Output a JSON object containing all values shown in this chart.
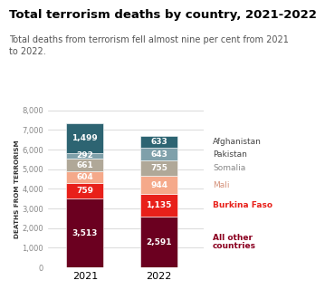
{
  "title": "Total terrorism deaths by country, 2021-2022",
  "subtitle": "Total deaths from terrorism fell almost nine per cent from 2021\nto 2022.",
  "years": [
    "2021",
    "2022"
  ],
  "categories": [
    "All other countries",
    "Burkina Faso",
    "Mali",
    "Somalia",
    "Pakistan",
    "Afghanistan"
  ],
  "values_2021": [
    3513,
    759,
    604,
    661,
    292,
    1499
  ],
  "values_2022": [
    2591,
    1135,
    944,
    755,
    643,
    633
  ],
  "colors": [
    "#6b0020",
    "#e8201a",
    "#f5a98a",
    "#b0a898",
    "#7fa0aa",
    "#2d6472"
  ],
  "legend_labels": [
    "Afghanistan",
    "Pakistan",
    "Somalia",
    "Mali",
    "Burkina Faso",
    "All other\ncountries"
  ],
  "legend_text_colors": [
    "#444444",
    "#444444",
    "#888888",
    "#d4917a",
    "#e8201a",
    "#8b0020"
  ],
  "ylabel": "DEATHS FROM TERRORISM",
  "ylim": [
    0,
    8000
  ],
  "yticks": [
    0,
    1000,
    2000,
    3000,
    4000,
    5000,
    6000,
    7000,
    8000
  ],
  "bar_width": 0.5,
  "title_fontsize": 9.5,
  "subtitle_fontsize": 7.0,
  "label_fontsize": 6.5,
  "legend_fontsize": 6.5,
  "background_color": "#ffffff"
}
